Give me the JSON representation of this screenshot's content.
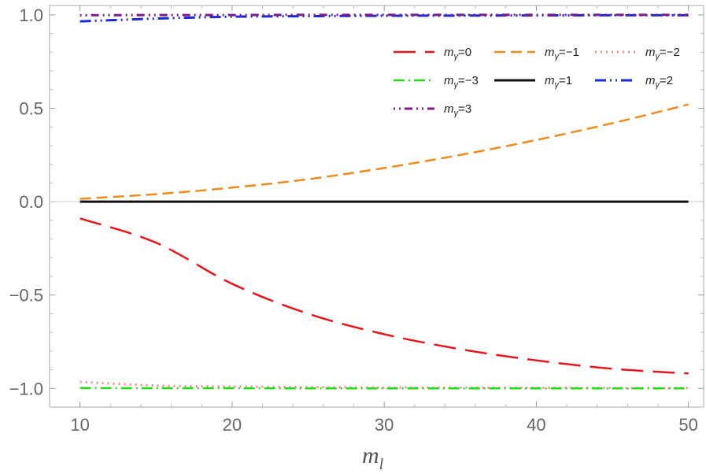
{
  "chart_data": {
    "type": "line",
    "title": "",
    "xlabel": "m",
    "xlabel_subscript": "l",
    "ylabel": "",
    "xlim": [
      8,
      51
    ],
    "ylim": [
      -1.1,
      1.05
    ],
    "xticks": [
      10,
      20,
      30,
      40,
      50
    ],
    "xtick_labels": [
      "10",
      "20",
      "30",
      "40",
      "50"
    ],
    "yticks": [
      -1.0,
      -0.5,
      0.0,
      0.5,
      1.0
    ],
    "ytick_labels": [
      "-1.0",
      "-0.5",
      "0.0",
      "0.5",
      "1.0"
    ],
    "grid": false,
    "legend_position": "top-right",
    "series": [
      {
        "name": "mγ=0",
        "label_prefix": "m",
        "label_sub": "γ",
        "label_suffix": "=0",
        "color": "#e8151b",
        "dash": "28,12",
        "width": 2.5,
        "x": [
          10,
          15,
          20,
          25,
          30,
          35,
          40,
          45,
          50
        ],
        "y": [
          -0.09,
          -0.22,
          -0.44,
          -0.6,
          -0.71,
          -0.79,
          -0.85,
          -0.895,
          -0.92
        ]
      },
      {
        "name": "mγ=-1",
        "label_prefix": "m",
        "label_sub": "γ",
        "label_suffix": "=−1",
        "color": "#ee8a1e",
        "dash": "14,7",
        "width": 2.5,
        "x": [
          10,
          15,
          20,
          25,
          30,
          35,
          40,
          45,
          50
        ],
        "y": [
          0.015,
          0.04,
          0.075,
          0.12,
          0.18,
          0.25,
          0.33,
          0.42,
          0.52
        ]
      },
      {
        "name": "mγ=-2",
        "label_prefix": "m",
        "label_sub": "γ",
        "label_suffix": "=−2",
        "color": "#f58a8a",
        "dash": "2,5",
        "width": 3,
        "x": [
          10,
          15,
          20,
          25,
          30,
          35,
          40,
          45,
          50
        ],
        "y": [
          -0.965,
          -0.985,
          -0.99,
          -0.993,
          -0.995,
          -0.996,
          -0.997,
          -0.998,
          -0.998
        ]
      },
      {
        "name": "mγ=-3",
        "label_prefix": "m",
        "label_sub": "γ",
        "label_suffix": "=−3",
        "color": "#22dd11",
        "dash": "14,5,2,5",
        "width": 2.5,
        "x": [
          10,
          15,
          20,
          25,
          30,
          35,
          40,
          45,
          50
        ],
        "y": [
          -0.998,
          -0.999,
          -0.999,
          -1.0,
          -1.0,
          -1.0,
          -1.0,
          -1.0,
          -1.0
        ]
      },
      {
        "name": "mγ=1",
        "label_prefix": "m",
        "label_sub": "γ",
        "label_suffix": "=1",
        "color": "#111111",
        "dash": "",
        "width": 3,
        "x": [
          10,
          50
        ],
        "y": [
          0.0,
          0.0
        ]
      },
      {
        "name": "mγ=2",
        "label_prefix": "m",
        "label_sub": "γ",
        "label_suffix": "=2",
        "color": "#1a2bd6",
        "dash": "14,5,2,5,2,5",
        "width": 3,
        "x": [
          10,
          15,
          20,
          25,
          30,
          35,
          40,
          45,
          50
        ],
        "y": [
          0.965,
          0.98,
          0.99,
          0.993,
          0.995,
          0.996,
          0.997,
          0.998,
          0.998
        ]
      },
      {
        "name": "mγ=3",
        "label_prefix": "m",
        "label_sub": "γ",
        "label_suffix": "=3",
        "color": "#7d1a8c",
        "dash": "2,5,2,5,10,5",
        "width": 3,
        "x": [
          10,
          15,
          20,
          25,
          30,
          35,
          40,
          45,
          50
        ],
        "y": [
          0.998,
          0.999,
          0.999,
          1.0,
          1.0,
          1.0,
          1.0,
          1.0,
          1.0
        ]
      }
    ]
  }
}
